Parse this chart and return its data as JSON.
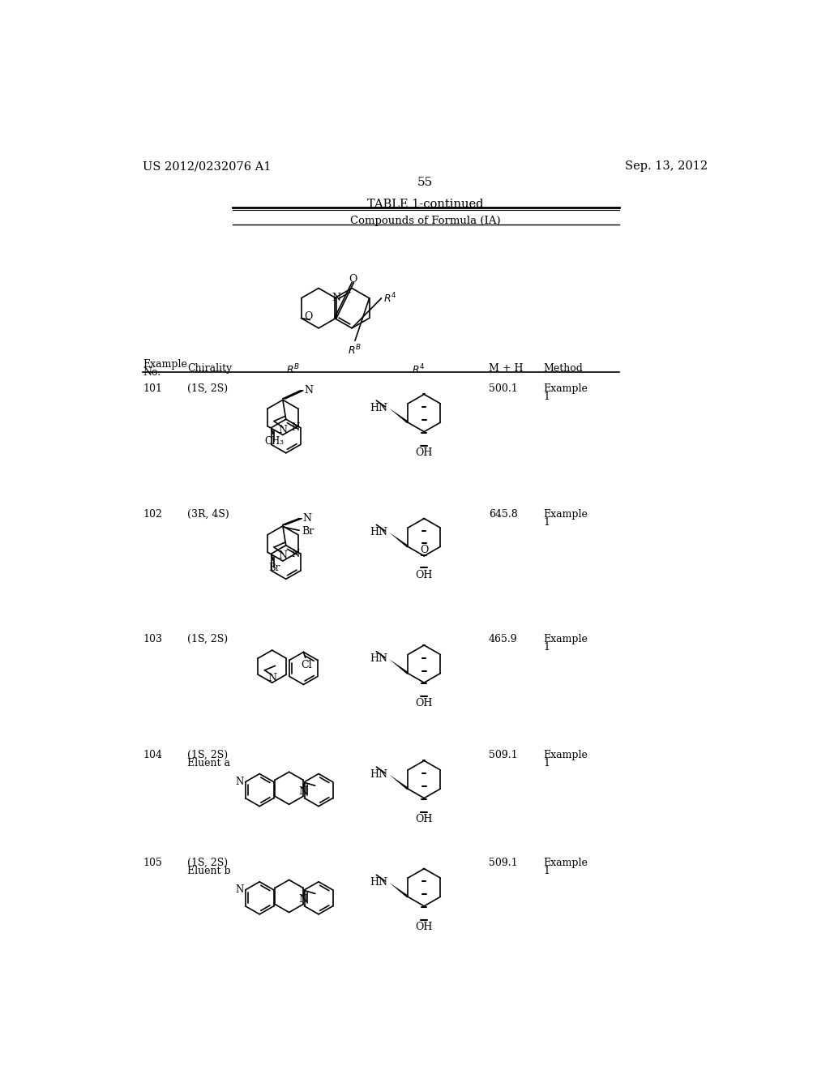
{
  "page_header_left": "US 2012/0232076 A1",
  "page_header_right": "Sep. 13, 2012",
  "page_number": "55",
  "table_title": "TABLE 1-continued",
  "table_subtitle": "Compounds of Formula (IA)",
  "background_color": "#ffffff"
}
